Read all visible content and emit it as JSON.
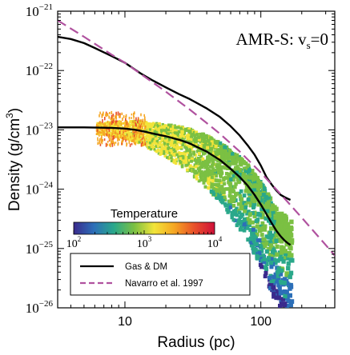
{
  "chart_data": {
    "type": "line",
    "annotation": {
      "main": "AMR-S: v",
      "sub": "s",
      "tail": "=0"
    },
    "xlabel": "Radius (pc)",
    "ylabel": {
      "main": "Density (g/cm",
      "sup": "3",
      "tail": ")"
    },
    "x_scale": "log",
    "y_scale": "log",
    "xlim": [
      3.2,
      350
    ],
    "ylim": [
      1e-26,
      1e-21
    ],
    "x_ticks": [
      {
        "value": 10,
        "label": "10"
      },
      {
        "value": 100,
        "label": "100"
      }
    ],
    "y_ticks": [
      {
        "value": 1e-21,
        "base": "10",
        "exp": "−21"
      },
      {
        "value": 1e-22,
        "base": "10",
        "exp": "−22"
      },
      {
        "value": 1e-23,
        "base": "10",
        "exp": "−23"
      },
      {
        "value": 1e-24,
        "base": "10",
        "exp": "−24"
      },
      {
        "value": 1e-25,
        "base": "10",
        "exp": "−25"
      },
      {
        "value": 1e-26,
        "base": "10",
        "exp": "−26"
      }
    ],
    "legend": {
      "placement": "bottom-left"
    },
    "series": [
      {
        "name": "Gas & DM",
        "color": "#000000",
        "style": "solid",
        "x": [
          3.2,
          4,
          5,
          6,
          8,
          10,
          13,
          16,
          20,
          25,
          30,
          40,
          50,
          60,
          70,
          80,
          90,
          100,
          110,
          120,
          130,
          140,
          150,
          160,
          165
        ],
        "y": [
          3.7e-22,
          3.4e-22,
          2.9e-22,
          2.4e-22,
          1.75e-22,
          1.35e-22,
          9e-23,
          6.8e-23,
          5.2e-23,
          4e-23,
          3.3e-23,
          2.3e-23,
          1.65e-23,
          1.15e-23,
          8e-24,
          5.5e-24,
          3.8e-24,
          2.5e-24,
          1.6e-24,
          1.2e-24,
          9.5e-25,
          8e-25,
          7.3e-25,
          6.8e-25,
          6.6e-25
        ]
      },
      {
        "name": "",
        "color": "#000000",
        "style": "solid",
        "x": [
          3.2,
          5,
          8,
          10,
          12,
          14,
          16,
          20,
          25,
          30,
          40,
          50,
          60,
          70,
          80,
          90,
          100,
          110,
          120,
          130,
          140,
          150,
          160,
          165
        ],
        "y": [
          1.1e-23,
          1.1e-23,
          1.08e-23,
          1.05e-23,
          1e-23,
          9.3e-24,
          8.7e-24,
          7.8e-24,
          6.8e-24,
          5.9e-24,
          4.3e-24,
          3.1e-24,
          2.2e-24,
          1.6e-24,
          1.15e-24,
          8e-25,
          5.5e-25,
          3.8e-25,
          2.7e-25,
          2e-25,
          1.6e-25,
          1.35e-25,
          1.2e-25,
          1.15e-25
        ]
      },
      {
        "name": "Navarro et al. 1997",
        "color": "#b0529f",
        "style": "dashed",
        "x": [
          3.2,
          5,
          8,
          10,
          15,
          20,
          30,
          40,
          50,
          70,
          100,
          150,
          200,
          250,
          300,
          350
        ],
        "y": [
          7e-22,
          3.7e-22,
          1.85e-22,
          1.35e-22,
          7e-23,
          4.4e-23,
          2.2e-23,
          1.3e-23,
          8.6e-24,
          4.3e-24,
          1.9e-24,
          6.9e-25,
          3.3e-25,
          1.85e-25,
          1.15e-25,
          7.6e-26
        ]
      }
    ],
    "colorbar": {
      "title": "Temperature",
      "scale": "log",
      "range": [
        100,
        10000
      ],
      "tick_labels": [
        {
          "value": 100,
          "base": "10",
          "exp": "2"
        },
        {
          "value": 1000,
          "base": "10",
          "exp": "3"
        },
        {
          "value": 10000,
          "base": "10",
          "exp": "4"
        }
      ],
      "colors": [
        "#3a2a8c",
        "#2c6fb8",
        "#2aa88a",
        "#7bc043",
        "#f2e43a",
        "#f5a623",
        "#e8502a",
        "#d0103a"
      ]
    },
    "scatter_cloud": {
      "description_color_note": "gas cells colored by temperature",
      "low_radius_color": "#f09a3a",
      "high_radius_color": "#2f7f5f"
    }
  }
}
